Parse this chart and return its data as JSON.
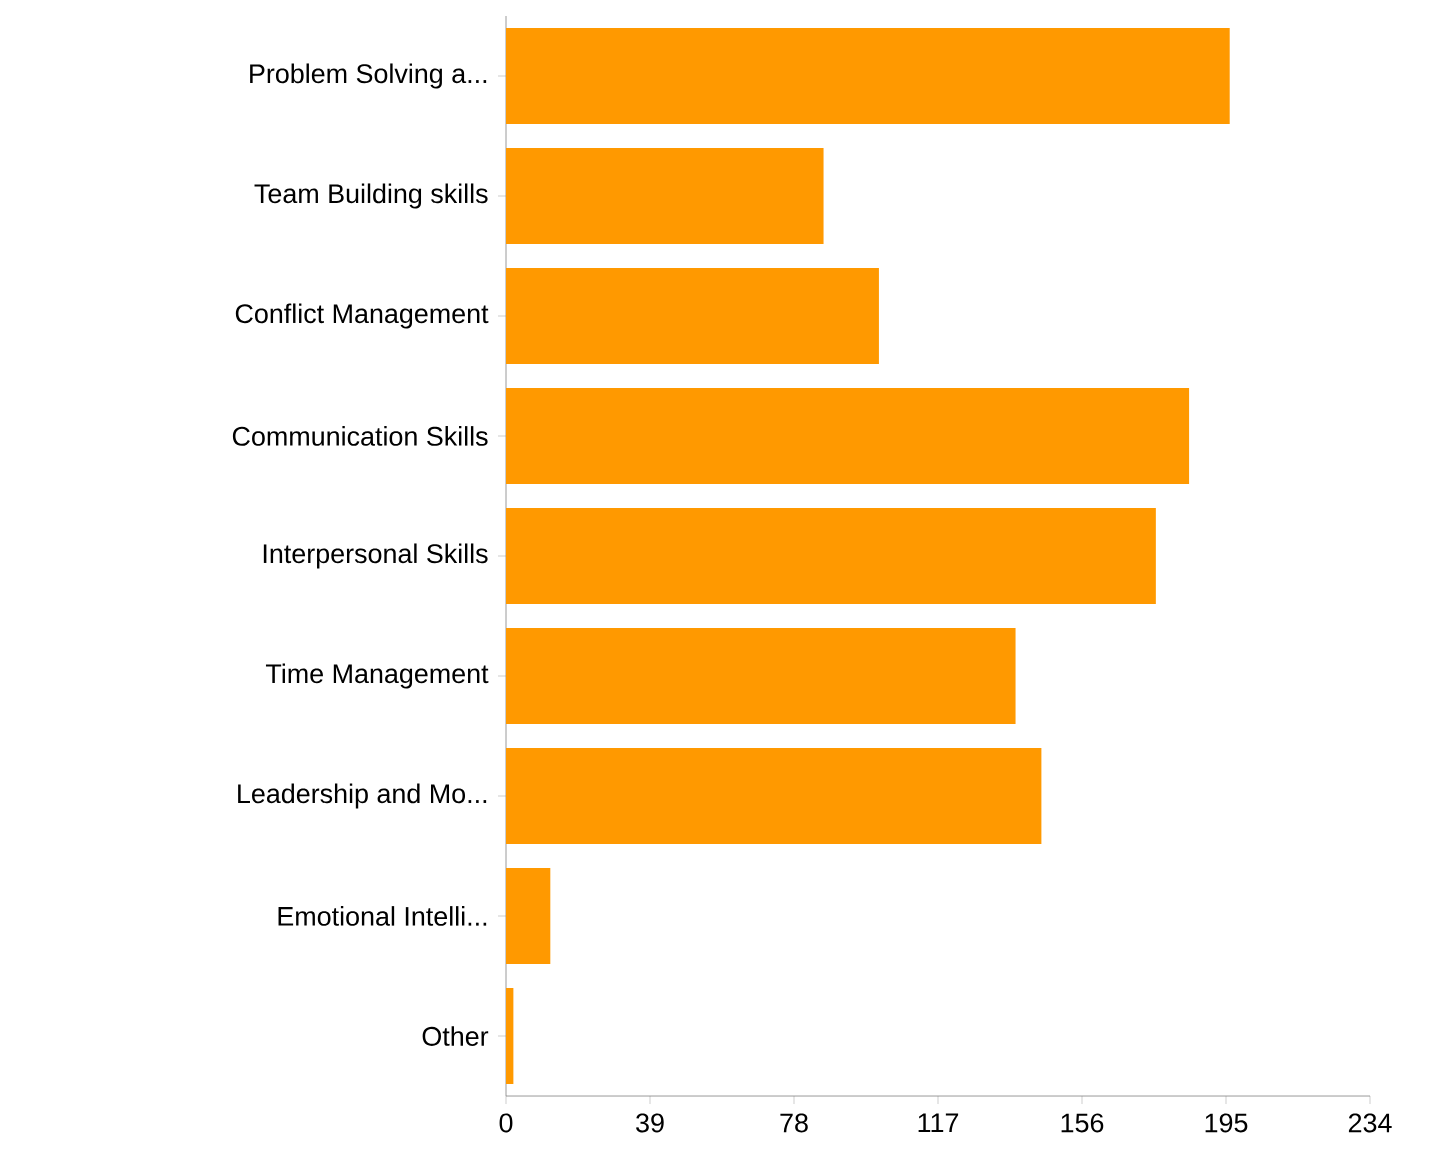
{
  "chart_data": {
    "type": "bar",
    "orientation": "horizontal",
    "categories": [
      "Problem Solving a...",
      "Team Building skills",
      "Conflict Management",
      "Communication Skills",
      "Interpersonal Skills",
      "Time Management",
      "Leadership and Mo...",
      "Emotional Intelli...",
      "Other"
    ],
    "values": [
      196,
      86,
      101,
      185,
      176,
      138,
      145,
      12,
      2
    ],
    "color": "#ff9900",
    "xlim": [
      0,
      234
    ],
    "xticks": [
      0,
      39,
      78,
      117,
      156,
      195,
      234
    ]
  }
}
